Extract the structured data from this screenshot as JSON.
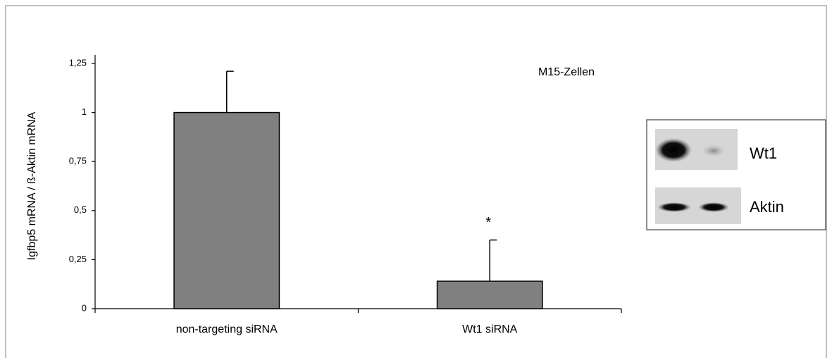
{
  "chart_data": {
    "type": "bar",
    "y_label": "Igfbp5 mRNA / ß-Aktin mRNA",
    "annotation": "M15-Zellen",
    "categories": [
      "non-targeting siRNA",
      "Wt1 siRNA"
    ],
    "values": [
      1,
      0.14
    ],
    "errors": [
      0.21,
      0.21
    ],
    "significance": [
      null,
      "*"
    ],
    "color": "#808080",
    "ylim": [
      0,
      1.25
    ],
    "yticks": [
      0,
      {
        "value": 0.25,
        "label": "0,25"
      },
      {
        "value": 0.5,
        "label": "0,5"
      },
      {
        "value": 0.75,
        "label": "0,75"
      },
      1,
      {
        "value": 1.25,
        "label": "1,25"
      }
    ],
    "grid": false
  },
  "blot": {
    "labels": [
      "Wt1",
      "Aktin"
    ]
  }
}
